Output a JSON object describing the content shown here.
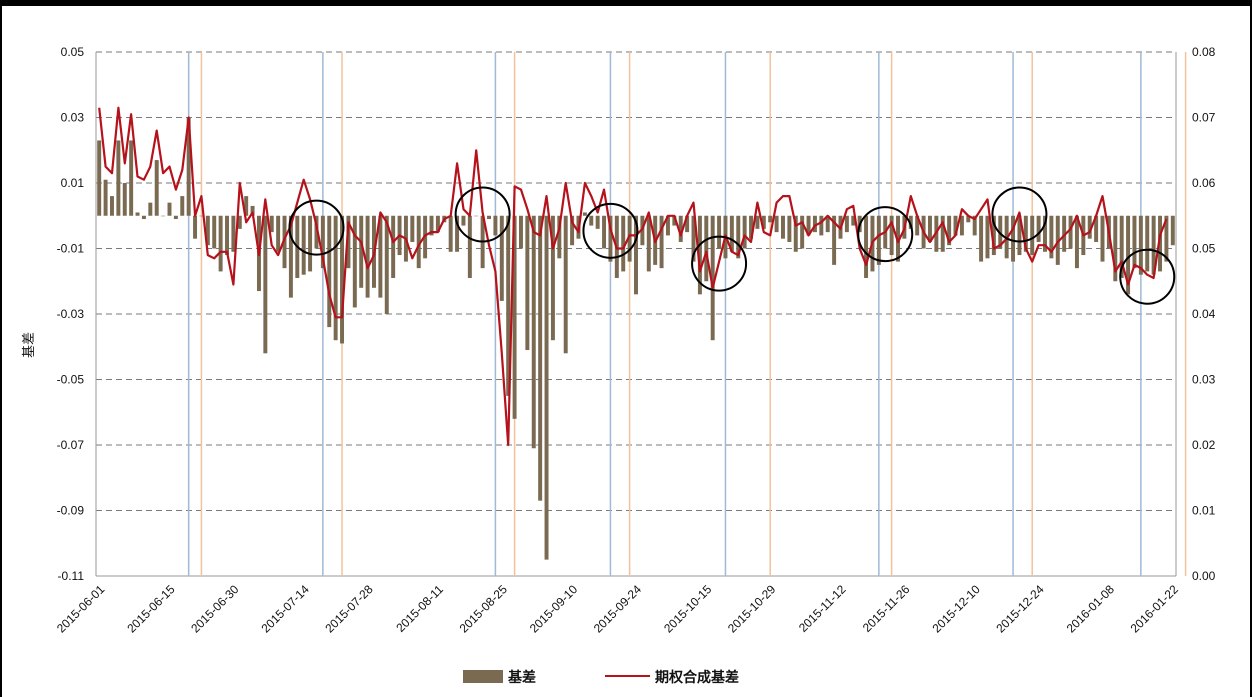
{
  "chart_data": {
    "type": "bar+line",
    "ylabel_left": "基差",
    "ylim_left": [
      -0.11,
      0.05
    ],
    "yticks_left": [
      "0.05",
      "0.03",
      "0.01",
      "-0.01",
      "-0.03",
      "-0.05",
      "-0.07",
      "-0.09",
      "-0.11"
    ],
    "ylim_right": [
      0.0,
      0.08
    ],
    "yticks_right": [
      "0.08",
      "0.07",
      "0.06",
      "0.05",
      "0.04",
      "0.03",
      "0.02",
      "0.01",
      "0.00"
    ],
    "xtick_labels": [
      "2015-06-01",
      "2015-06-15",
      "2015-06-30",
      "2015-07-14",
      "2015-07-28",
      "2015-08-11",
      "2015-08-25",
      "2015-09-10",
      "2015-09-24",
      "2015-10-15",
      "2015-10-29",
      "2015-11-12",
      "2015-11-26",
      "2015-12-10",
      "2015-12-24",
      "2016-01-08",
      "2016-01-22"
    ],
    "grid": true,
    "legend_position": "bottom",
    "series": [
      {
        "name": "基差",
        "type": "bar",
        "axis": "left",
        "color": "#7a6a52",
        "values": [
          0.023,
          0.011,
          0.006,
          0.023,
          0.01,
          0.023,
          0.001,
          -0.001,
          0.004,
          0.017,
          0.0,
          0.004,
          -0.001,
          0.006,
          0.03,
          -0.007,
          0.0,
          -0.009,
          -0.01,
          -0.017,
          -0.012,
          -0.011,
          -0.004,
          0.006,
          0.003,
          -0.023,
          -0.042,
          -0.005,
          -0.011,
          -0.016,
          -0.025,
          -0.019,
          -0.018,
          -0.017,
          -0.01,
          -0.016,
          -0.034,
          -0.038,
          -0.039,
          -0.016,
          -0.028,
          -0.022,
          -0.025,
          -0.022,
          -0.025,
          -0.03,
          -0.019,
          -0.012,
          -0.014,
          -0.008,
          -0.016,
          -0.013,
          -0.006,
          -0.005,
          -0.002,
          -0.011,
          -0.011,
          -0.003,
          -0.019,
          0.0,
          -0.016,
          -0.001,
          -0.006,
          -0.026,
          -0.055,
          -0.062,
          -0.01,
          -0.041,
          -0.071,
          -0.087,
          -0.105,
          -0.038,
          -0.013,
          -0.042,
          -0.009,
          -0.007,
          0.001,
          -0.003,
          -0.004,
          -0.01,
          -0.014,
          -0.019,
          -0.017,
          -0.014,
          -0.024,
          -0.009,
          -0.017,
          -0.015,
          -0.016,
          -0.006,
          -0.003,
          -0.008,
          -0.005,
          -0.014,
          -0.024,
          -0.02,
          -0.038,
          -0.01,
          -0.013,
          -0.011,
          -0.013,
          -0.01,
          -0.007,
          -0.004,
          -0.004,
          -0.002,
          -0.005,
          -0.007,
          -0.008,
          -0.011,
          -0.01,
          -0.006,
          -0.005,
          -0.006,
          -0.005,
          -0.015,
          -0.007,
          -0.005,
          -0.003,
          -0.005,
          -0.019,
          -0.017,
          -0.015,
          -0.01,
          -0.012,
          -0.014,
          -0.007,
          -0.004,
          -0.006,
          -0.01,
          -0.008,
          -0.011,
          -0.011,
          -0.009,
          -0.006,
          -0.006,
          -0.002,
          -0.006,
          -0.014,
          -0.013,
          -0.012,
          -0.01,
          -0.013,
          -0.014,
          -0.012,
          -0.011,
          -0.012,
          -0.008,
          -0.011,
          -0.013,
          -0.015,
          -0.011,
          -0.01,
          -0.016,
          -0.012,
          -0.007,
          -0.008,
          -0.014,
          -0.01,
          -0.02,
          -0.019,
          -0.024,
          -0.016,
          -0.018,
          -0.017,
          -0.018,
          -0.017,
          -0.014,
          -0.009
        ]
      },
      {
        "name": "期权合成基差",
        "type": "line",
        "axis": "right",
        "color": "#b5121b",
        "values": [
          0.0715,
          0.0625,
          0.0615,
          0.0715,
          0.063,
          0.0705,
          0.061,
          0.0605,
          0.0625,
          0.068,
          0.0615,
          0.0625,
          0.059,
          0.062,
          0.07,
          0.055,
          0.058,
          0.049,
          0.0485,
          0.0495,
          0.0495,
          0.0445,
          0.06,
          0.054,
          0.0555,
          0.049,
          0.0575,
          0.0505,
          0.049,
          0.0515,
          0.0535,
          0.057,
          0.0605,
          0.0575,
          0.0535,
          0.0485,
          0.043,
          0.0395,
          0.0395,
          0.054,
          0.052,
          0.051,
          0.047,
          0.049,
          0.0555,
          0.054,
          0.051,
          0.052,
          0.0515,
          0.0485,
          0.0505,
          0.052,
          0.0525,
          0.0525,
          0.0545,
          0.055,
          0.063,
          0.056,
          0.055,
          0.065,
          0.0555,
          0.0505,
          0.0465,
          0.034,
          0.02,
          0.0595,
          0.059,
          0.056,
          0.0525,
          0.052,
          0.058,
          0.05,
          0.053,
          0.06,
          0.054,
          0.0525,
          0.06,
          0.058,
          0.0555,
          0.059,
          0.053,
          0.05,
          0.05,
          0.052,
          0.052,
          0.053,
          0.0555,
          0.051,
          0.053,
          0.055,
          0.055,
          0.052,
          0.055,
          0.057,
          0.0465,
          0.0495,
          0.044,
          0.048,
          0.052,
          0.0495,
          0.049,
          0.052,
          0.051,
          0.057,
          0.0525,
          0.052,
          0.057,
          0.058,
          0.058,
          0.0535,
          0.054,
          0.052,
          0.0535,
          0.054,
          0.055,
          0.054,
          0.053,
          0.056,
          0.0565,
          0.05,
          0.0475,
          0.051,
          0.052,
          0.0525,
          0.054,
          0.051,
          0.053,
          0.058,
          0.055,
          0.0525,
          0.051,
          0.0525,
          0.054,
          0.051,
          0.052,
          0.056,
          0.055,
          0.0545,
          0.056,
          0.0575,
          0.05,
          0.0505,
          0.0515,
          0.053,
          0.0555,
          0.05,
          0.048,
          0.0505,
          0.0505,
          0.0495,
          0.051,
          0.052,
          0.053,
          0.055,
          0.052,
          0.0525,
          0.055,
          0.058,
          0.0525,
          0.0465,
          0.048,
          0.0445,
          0.0475,
          0.047,
          0.046,
          0.0455,
          0.052,
          0.0545
        ]
      }
    ],
    "vertical_lines": {
      "blue_indices": [
        14,
        35,
        62,
        80,
        98,
        122,
        143,
        163
      ],
      "orange_indices": [
        16,
        38,
        65,
        83,
        105,
        124,
        146,
        170
      ],
      "blue_color": "#9fb9d6",
      "orange_color": "#f3c29a"
    },
    "highlight_circles_at_indices": [
      34,
      60,
      80,
      97,
      123,
      144,
      164
    ]
  }
}
